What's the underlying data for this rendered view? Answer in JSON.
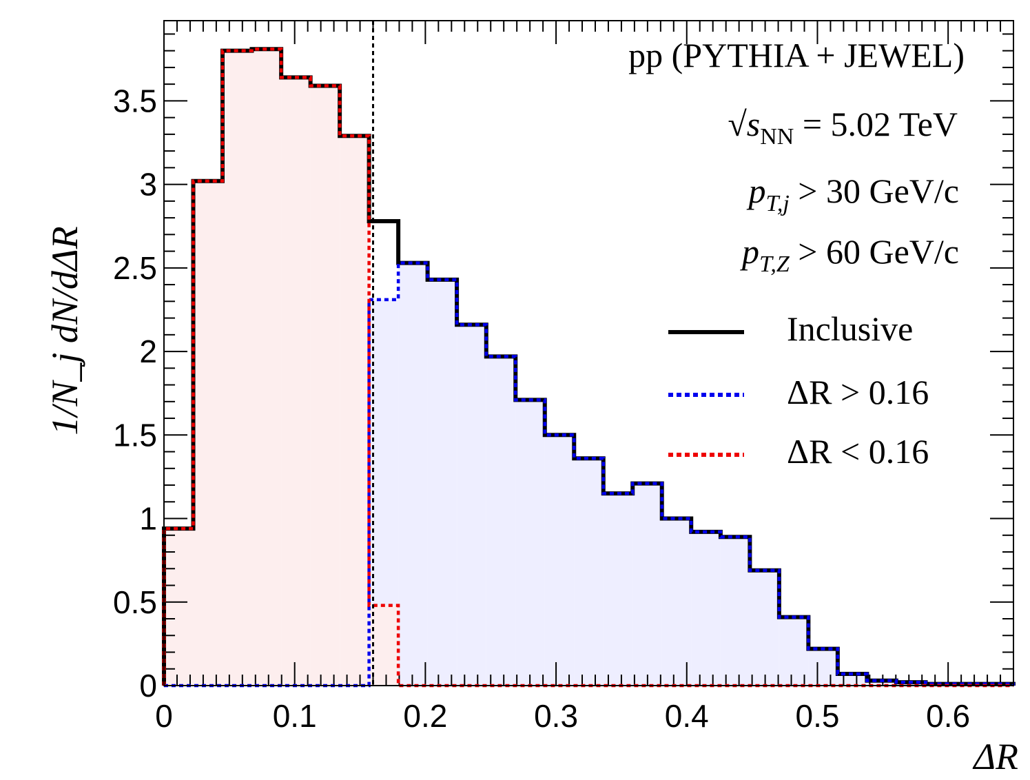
{
  "chart_data": {
    "type": "histogram-step",
    "xlabel": "ΔR",
    "ylabel": "1/N_j dN/dΔR",
    "xlim": [
      0,
      0.65
    ],
    "ylim": [
      0,
      3.98
    ],
    "x_ticks": [
      "0",
      "0.1",
      "0.2",
      "0.3",
      "0.4",
      "0.5",
      "0.6"
    ],
    "y_ticks": [
      "0",
      "0.5",
      "1",
      "1.5",
      "2",
      "2.5",
      "3",
      "3.5"
    ],
    "bin_edges": [
      0,
      0.0224,
      0.0448,
      0.0672,
      0.0897,
      0.1121,
      0.1345,
      0.1569,
      0.1793,
      0.2017,
      0.2241,
      0.2466,
      0.269,
      0.2914,
      0.3138,
      0.3362,
      0.3586,
      0.381,
      0.4034,
      0.4259,
      0.4483,
      0.4707,
      0.4931,
      0.5155,
      0.5379,
      0.5603,
      0.5828,
      0.6052,
      0.6276,
      0.65
    ],
    "series": [
      {
        "name": "Inclusive",
        "style": "solid",
        "color": "#000000",
        "values": [
          0.94,
          3.02,
          3.8,
          3.81,
          3.64,
          3.59,
          3.29,
          2.78,
          2.53,
          2.43,
          2.16,
          1.97,
          1.71,
          1.5,
          1.36,
          1.15,
          1.21,
          1.0,
          0.92,
          0.89,
          0.69,
          0.41,
          0.22,
          0.07,
          0.03,
          0.02,
          0.01,
          0.01,
          0.01
        ]
      },
      {
        "name": "ΔR > 0.16",
        "style": "dotted",
        "color": "#0000ee",
        "fill": "#eeeeff",
        "values": [
          0,
          0,
          0,
          0,
          0,
          0,
          0,
          2.31,
          2.53,
          2.43,
          2.16,
          1.97,
          1.71,
          1.5,
          1.36,
          1.15,
          1.21,
          1.0,
          0.92,
          0.89,
          0.69,
          0.41,
          0.22,
          0.07,
          0.03,
          0.02,
          0.01,
          0.01,
          0.01
        ]
      },
      {
        "name": "ΔR < 0.16",
        "style": "dotted",
        "color": "#ee0000",
        "fill": "#fdeeee",
        "values": [
          0.94,
          3.02,
          3.8,
          3.81,
          3.64,
          3.59,
          3.29,
          0.48,
          0,
          0,
          0,
          0,
          0,
          0,
          0,
          0,
          0,
          0,
          0,
          0,
          0,
          0,
          0,
          0,
          0,
          0,
          0,
          0,
          0
        ]
      }
    ],
    "vertical_line": {
      "x": 0.16,
      "style": "dashed",
      "color": "#000000"
    },
    "annotations": {
      "title": "pp (PYTHIA + JEWEL)",
      "energy": {
        "prefix": "√",
        "symbol": "s",
        "subscript": "NN",
        "rest": " = 5.02 TeV"
      },
      "jet_cut": {
        "symbol": "p",
        "subscript": "T,j",
        "rest": " > 30 GeV/c"
      },
      "z_cut": {
        "symbol": "p",
        "subscript": "T,Z",
        "rest": " > 60 GeV/c"
      }
    },
    "legend": {
      "position": "top-right",
      "entries": [
        "Inclusive",
        "ΔR > 0.16",
        "ΔR < 0.16"
      ]
    }
  }
}
